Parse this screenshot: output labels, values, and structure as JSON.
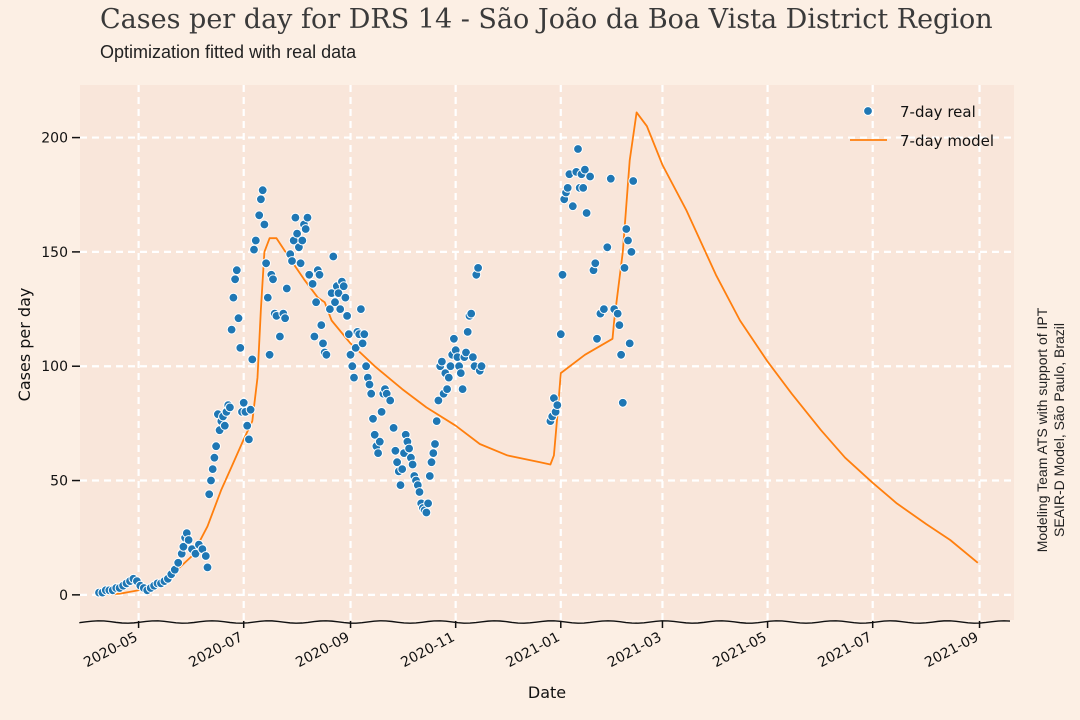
{
  "title": "Cases per day for DRS 14 - São João da Boa Vista District Region",
  "subtitle": "Optimization fitted with real data",
  "side_note": {
    "line1": "Modeling Team ATS with support of IPT",
    "line2": "SEAIR-D Model, São Paulo, Brazil"
  },
  "colors": {
    "background": "#fcefe4",
    "plot_background": "#f9e6da",
    "grid": "#ffffff",
    "real": "#1f77b4",
    "model": "#ff7f0e"
  },
  "chart_data": {
    "type": "scatter",
    "xlabel": "Date",
    "ylabel": "Cases per day",
    "x_type": "date",
    "xlim": [
      "2020-03-28",
      "2021-09-21"
    ],
    "ylim": [
      -11,
      223
    ],
    "x_ticks": [
      "2020-05-01",
      "2020-07-01",
      "2020-09-01",
      "2020-11-01",
      "2021-01-01",
      "2021-03-01",
      "2021-05-01",
      "2021-07-01",
      "2021-09-01"
    ],
    "x_tick_labels": [
      "2020-05",
      "2020-07",
      "2020-09",
      "2020-11",
      "2021-01",
      "2021-03",
      "2021-05",
      "2021-07",
      "2021-09"
    ],
    "y_ticks": [
      0,
      50,
      100,
      150,
      200
    ],
    "y_tick_labels": [
      "0",
      "50",
      "100",
      "150",
      "200"
    ],
    "grid": true,
    "legend_position": "top-right",
    "series": [
      {
        "name": "7-day real",
        "kind": "scatter",
        "points": [
          [
            "2020-04-08",
            1
          ],
          [
            "2020-04-10",
            1
          ],
          [
            "2020-04-12",
            2
          ],
          [
            "2020-04-14",
            2
          ],
          [
            "2020-04-16",
            2
          ],
          [
            "2020-04-18",
            3
          ],
          [
            "2020-04-20",
            3
          ],
          [
            "2020-04-22",
            4
          ],
          [
            "2020-04-24",
            5
          ],
          [
            "2020-04-26",
            6
          ],
          [
            "2020-04-28",
            7
          ],
          [
            "2020-04-30",
            6
          ],
          [
            "2020-05-02",
            4
          ],
          [
            "2020-05-04",
            3
          ],
          [
            "2020-05-06",
            2
          ],
          [
            "2020-05-08",
            3
          ],
          [
            "2020-05-10",
            4
          ],
          [
            "2020-05-12",
            5
          ],
          [
            "2020-05-14",
            5
          ],
          [
            "2020-05-16",
            6
          ],
          [
            "2020-05-18",
            7
          ],
          [
            "2020-05-20",
            9
          ],
          [
            "2020-05-22",
            11
          ],
          [
            "2020-05-24",
            14
          ],
          [
            "2020-05-26",
            18
          ],
          [
            "2020-05-27",
            21
          ],
          [
            "2020-05-28",
            25
          ],
          [
            "2020-05-29",
            27
          ],
          [
            "2020-05-30",
            24
          ],
          [
            "2020-06-01",
            20
          ],
          [
            "2020-06-03",
            18
          ],
          [
            "2020-06-05",
            22
          ],
          [
            "2020-06-07",
            20
          ],
          [
            "2020-06-09",
            17
          ],
          [
            "2020-06-10",
            12
          ],
          [
            "2020-06-11",
            44
          ],
          [
            "2020-06-12",
            50
          ],
          [
            "2020-06-13",
            55
          ],
          [
            "2020-06-14",
            60
          ],
          [
            "2020-06-15",
            65
          ],
          [
            "2020-06-16",
            79
          ],
          [
            "2020-06-17",
            72
          ],
          [
            "2020-06-18",
            76
          ],
          [
            "2020-06-19",
            78
          ],
          [
            "2020-06-20",
            74
          ],
          [
            "2020-06-21",
            80
          ],
          [
            "2020-06-22",
            83
          ],
          [
            "2020-06-23",
            82
          ],
          [
            "2020-06-24",
            116
          ],
          [
            "2020-06-25",
            130
          ],
          [
            "2020-06-26",
            138
          ],
          [
            "2020-06-27",
            142
          ],
          [
            "2020-06-28",
            121
          ],
          [
            "2020-06-29",
            108
          ],
          [
            "2020-06-30",
            80
          ],
          [
            "2020-07-01",
            84
          ],
          [
            "2020-07-02",
            80
          ],
          [
            "2020-07-03",
            74
          ],
          [
            "2020-07-04",
            68
          ],
          [
            "2020-07-05",
            81
          ],
          [
            "2020-07-06",
            103
          ],
          [
            "2020-07-07",
            151
          ],
          [
            "2020-07-08",
            155
          ],
          [
            "2020-07-10",
            166
          ],
          [
            "2020-07-11",
            173
          ],
          [
            "2020-07-12",
            177
          ],
          [
            "2020-07-13",
            162
          ],
          [
            "2020-07-14",
            145
          ],
          [
            "2020-07-15",
            130
          ],
          [
            "2020-07-16",
            105
          ],
          [
            "2020-07-17",
            140
          ],
          [
            "2020-07-18",
            138
          ],
          [
            "2020-07-19",
            123
          ],
          [
            "2020-07-20",
            122
          ],
          [
            "2020-07-22",
            113
          ],
          [
            "2020-07-24",
            123
          ],
          [
            "2020-07-25",
            121
          ],
          [
            "2020-07-26",
            134
          ],
          [
            "2020-07-28",
            149
          ],
          [
            "2020-07-29",
            146
          ],
          [
            "2020-07-30",
            155
          ],
          [
            "2020-07-31",
            165
          ],
          [
            "2020-08-01",
            158
          ],
          [
            "2020-08-02",
            152
          ],
          [
            "2020-08-03",
            145
          ],
          [
            "2020-08-04",
            155
          ],
          [
            "2020-08-05",
            162
          ],
          [
            "2020-08-06",
            160
          ],
          [
            "2020-08-07",
            165
          ],
          [
            "2020-08-08",
            140
          ],
          [
            "2020-08-10",
            136
          ],
          [
            "2020-08-11",
            113
          ],
          [
            "2020-08-12",
            128
          ],
          [
            "2020-08-13",
            142
          ],
          [
            "2020-08-14",
            140
          ],
          [
            "2020-08-15",
            118
          ],
          [
            "2020-08-16",
            110
          ],
          [
            "2020-08-17",
            106
          ],
          [
            "2020-08-18",
            105
          ],
          [
            "2020-08-20",
            125
          ],
          [
            "2020-08-21",
            132
          ],
          [
            "2020-08-22",
            148
          ],
          [
            "2020-08-23",
            128
          ],
          [
            "2020-08-24",
            135
          ],
          [
            "2020-08-25",
            132
          ],
          [
            "2020-08-26",
            125
          ],
          [
            "2020-08-27",
            137
          ],
          [
            "2020-08-28",
            135
          ],
          [
            "2020-08-29",
            130
          ],
          [
            "2020-08-30",
            122
          ],
          [
            "2020-08-31",
            114
          ],
          [
            "2020-09-01",
            105
          ],
          [
            "2020-09-02",
            100
          ],
          [
            "2020-09-03",
            95
          ],
          [
            "2020-09-04",
            108
          ],
          [
            "2020-09-05",
            115
          ],
          [
            "2020-09-06",
            114
          ],
          [
            "2020-09-07",
            125
          ],
          [
            "2020-09-08",
            110
          ],
          [
            "2020-09-09",
            114
          ],
          [
            "2020-09-10",
            100
          ],
          [
            "2020-09-11",
            95
          ],
          [
            "2020-09-12",
            92
          ],
          [
            "2020-09-13",
            88
          ],
          [
            "2020-09-14",
            77
          ],
          [
            "2020-09-15",
            70
          ],
          [
            "2020-09-16",
            65
          ],
          [
            "2020-09-17",
            62
          ],
          [
            "2020-09-18",
            67
          ],
          [
            "2020-09-19",
            80
          ],
          [
            "2020-09-20",
            88
          ],
          [
            "2020-09-21",
            90
          ],
          [
            "2020-09-22",
            88
          ],
          [
            "2020-09-24",
            85
          ],
          [
            "2020-09-26",
            73
          ],
          [
            "2020-09-27",
            63
          ],
          [
            "2020-09-28",
            58
          ],
          [
            "2020-09-29",
            54
          ],
          [
            "2020-09-30",
            48
          ],
          [
            "2020-10-01",
            55
          ],
          [
            "2020-10-02",
            62
          ],
          [
            "2020-10-03",
            70
          ],
          [
            "2020-10-04",
            67
          ],
          [
            "2020-10-05",
            64
          ],
          [
            "2020-10-06",
            60
          ],
          [
            "2020-10-07",
            57
          ],
          [
            "2020-10-08",
            52
          ],
          [
            "2020-10-09",
            50
          ],
          [
            "2020-10-10",
            48
          ],
          [
            "2020-10-11",
            45
          ],
          [
            "2020-10-12",
            40
          ],
          [
            "2020-10-13",
            38
          ],
          [
            "2020-10-14",
            37
          ],
          [
            "2020-10-15",
            36
          ],
          [
            "2020-10-16",
            40
          ],
          [
            "2020-10-17",
            52
          ],
          [
            "2020-10-18",
            58
          ],
          [
            "2020-10-19",
            62
          ],
          [
            "2020-10-20",
            66
          ],
          [
            "2020-10-21",
            76
          ],
          [
            "2020-10-22",
            85
          ],
          [
            "2020-10-23",
            100
          ],
          [
            "2020-10-24",
            102
          ],
          [
            "2020-10-25",
            88
          ],
          [
            "2020-10-26",
            97
          ],
          [
            "2020-10-27",
            90
          ],
          [
            "2020-10-28",
            95
          ],
          [
            "2020-10-29",
            100
          ],
          [
            "2020-10-30",
            105
          ],
          [
            "2020-10-31",
            112
          ],
          [
            "2020-11-01",
            107
          ],
          [
            "2020-11-02",
            104
          ],
          [
            "2020-11-03",
            100
          ],
          [
            "2020-11-04",
            97
          ],
          [
            "2020-11-05",
            90
          ],
          [
            "2020-11-06",
            104
          ],
          [
            "2020-11-07",
            106
          ],
          [
            "2020-11-08",
            115
          ],
          [
            "2020-11-09",
            122
          ],
          [
            "2020-11-10",
            123
          ],
          [
            "2020-11-11",
            104
          ],
          [
            "2020-11-12",
            100
          ],
          [
            "2020-11-13",
            140
          ],
          [
            "2020-11-14",
            143
          ],
          [
            "2020-11-15",
            98
          ],
          [
            "2020-11-16",
            100
          ],
          [
            "2020-12-26",
            76
          ],
          [
            "2020-12-27",
            78
          ],
          [
            "2020-12-28",
            86
          ],
          [
            "2020-12-29",
            80
          ],
          [
            "2020-12-30",
            83
          ],
          [
            "2021-01-01",
            114
          ],
          [
            "2021-01-02",
            140
          ],
          [
            "2021-01-03",
            173
          ],
          [
            "2021-01-04",
            176
          ],
          [
            "2021-01-05",
            178
          ],
          [
            "2021-01-06",
            184
          ],
          [
            "2021-01-08",
            170
          ],
          [
            "2021-01-10",
            185
          ],
          [
            "2021-01-11",
            195
          ],
          [
            "2021-01-12",
            178
          ],
          [
            "2021-01-13",
            184
          ],
          [
            "2021-01-14",
            178
          ],
          [
            "2021-01-15",
            186
          ],
          [
            "2021-01-16",
            167
          ],
          [
            "2021-01-18",
            183
          ],
          [
            "2021-01-20",
            142
          ],
          [
            "2021-01-21",
            145
          ],
          [
            "2021-01-22",
            112
          ],
          [
            "2021-01-24",
            123
          ],
          [
            "2021-01-26",
            125
          ],
          [
            "2021-01-28",
            152
          ],
          [
            "2021-01-30",
            182
          ],
          [
            "2021-02-01",
            125
          ],
          [
            "2021-02-03",
            123
          ],
          [
            "2021-02-04",
            118
          ],
          [
            "2021-02-05",
            105
          ],
          [
            "2021-02-06",
            84
          ],
          [
            "2021-02-07",
            143
          ],
          [
            "2021-02-08",
            160
          ],
          [
            "2021-02-09",
            155
          ],
          [
            "2021-02-10",
            110
          ],
          [
            "2021-02-11",
            150
          ],
          [
            "2021-02-12",
            181
          ]
        ]
      },
      {
        "name": "7-day model",
        "kind": "line",
        "points": [
          [
            "2020-04-08",
            0
          ],
          [
            "2020-04-20",
            0.5
          ],
          [
            "2020-05-01",
            2
          ],
          [
            "2020-05-12",
            5
          ],
          [
            "2020-05-22",
            10
          ],
          [
            "2020-06-01",
            17
          ],
          [
            "2020-06-10",
            30
          ],
          [
            "2020-06-18",
            46
          ],
          [
            "2020-06-24",
            56
          ],
          [
            "2020-07-01",
            68
          ],
          [
            "2020-07-06",
            76
          ],
          [
            "2020-07-09",
            95
          ],
          [
            "2020-07-11",
            125
          ],
          [
            "2020-07-13",
            150
          ],
          [
            "2020-07-16",
            156
          ],
          [
            "2020-07-20",
            156
          ],
          [
            "2020-07-27",
            148
          ],
          [
            "2020-08-05",
            138
          ],
          [
            "2020-08-13",
            130
          ],
          [
            "2020-08-17",
            128
          ],
          [
            "2020-08-21",
            120
          ],
          [
            "2020-09-01",
            110
          ],
          [
            "2020-09-15",
            100
          ],
          [
            "2020-10-01",
            90
          ],
          [
            "2020-10-15",
            82
          ],
          [
            "2020-11-01",
            74
          ],
          [
            "2020-11-15",
            66
          ],
          [
            "2020-12-01",
            61
          ],
          [
            "2020-12-20",
            58
          ],
          [
            "2020-12-26",
            57
          ],
          [
            "2020-12-28",
            61
          ],
          [
            "2020-12-30",
            78
          ],
          [
            "2021-01-01",
            97
          ],
          [
            "2021-01-15",
            105
          ],
          [
            "2021-01-31",
            112
          ],
          [
            "2021-02-01",
            120
          ],
          [
            "2021-02-06",
            150
          ],
          [
            "2021-02-10",
            190
          ],
          [
            "2021-02-14",
            211
          ],
          [
            "2021-02-20",
            205
          ],
          [
            "2021-03-01",
            188
          ],
          [
            "2021-03-15",
            168
          ],
          [
            "2021-04-01",
            140
          ],
          [
            "2021-04-15",
            120
          ],
          [
            "2021-05-01",
            102
          ],
          [
            "2021-05-15",
            88
          ],
          [
            "2021-06-01",
            72
          ],
          [
            "2021-06-15",
            60
          ],
          [
            "2021-07-01",
            49
          ],
          [
            "2021-07-15",
            40
          ],
          [
            "2021-08-01",
            31
          ],
          [
            "2021-08-15",
            24
          ],
          [
            "2021-08-31",
            14
          ]
        ]
      }
    ]
  }
}
